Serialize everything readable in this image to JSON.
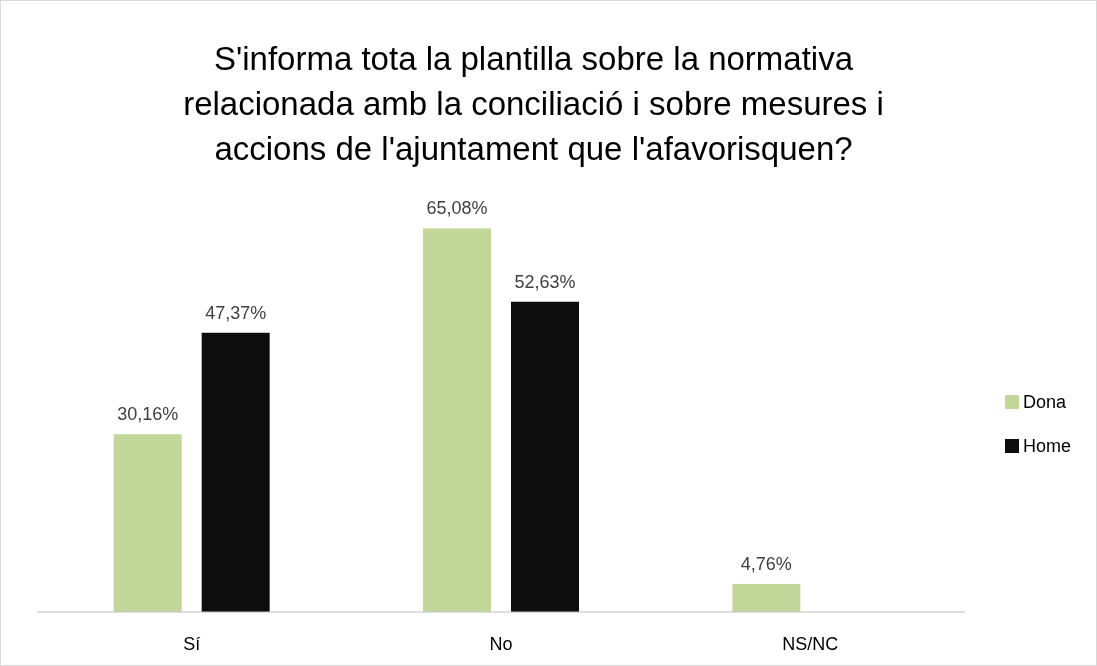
{
  "chart_data": {
    "type": "bar",
    "title": "S'informa tota la plantilla sobre la normativa relacionada amb la conciliació i sobre mesures i accions de l'ajuntament que l'afavorisquen?",
    "categories": [
      "Sí",
      "No",
      "NS/NC"
    ],
    "series": [
      {
        "name": "Dona",
        "color": "#c4d79b",
        "values": [
          30.16,
          65.08,
          4.76
        ],
        "value_labels": [
          "30,16%",
          "65,08%",
          "4,76%"
        ]
      },
      {
        "name": "Home",
        "color": "#0d0d0d",
        "values": [
          47.37,
          52.63,
          null
        ],
        "value_labels": [
          "47,37%",
          "52,63%",
          null
        ]
      }
    ],
    "legend": "right",
    "grid": false
  }
}
